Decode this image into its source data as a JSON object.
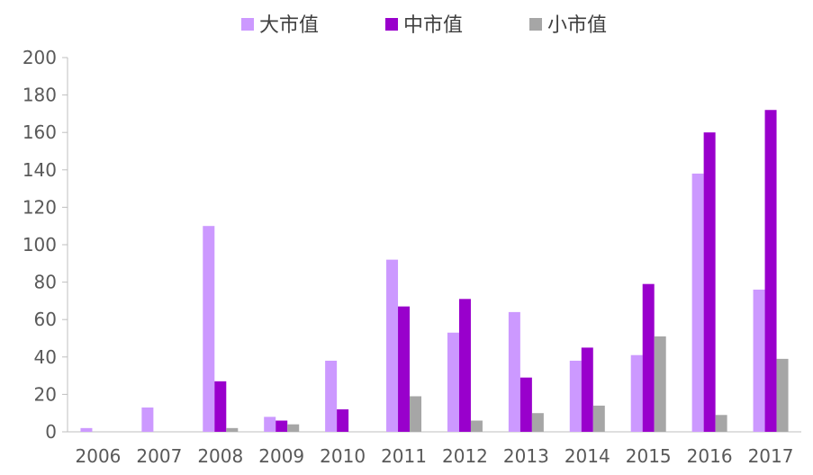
{
  "chart_data": {
    "type": "bar",
    "categories": [
      "2006",
      "2007",
      "2008",
      "2009",
      "2010",
      "2011",
      "2012",
      "2013",
      "2014",
      "2015",
      "2016",
      "2017"
    ],
    "series": [
      {
        "name": "大市值",
        "color": "#cc99ff",
        "values": [
          2,
          13,
          110,
          8,
          38,
          92,
          53,
          64,
          38,
          41,
          138,
          76
        ]
      },
      {
        "name": "中市值",
        "color": "#9900cc",
        "values": [
          0,
          0,
          27,
          6,
          12,
          67,
          71,
          29,
          45,
          79,
          160,
          172
        ]
      },
      {
        "name": "小市值",
        "color": "#a6a6a6",
        "values": [
          0,
          0,
          2,
          4,
          0,
          19,
          6,
          10,
          14,
          51,
          9,
          39
        ]
      }
    ],
    "ylim": [
      0,
      200
    ],
    "yticks": [
      0,
      20,
      40,
      60,
      80,
      100,
      120,
      140,
      160,
      180,
      200
    ],
    "grid": false,
    "legend_position": "top-center"
  }
}
